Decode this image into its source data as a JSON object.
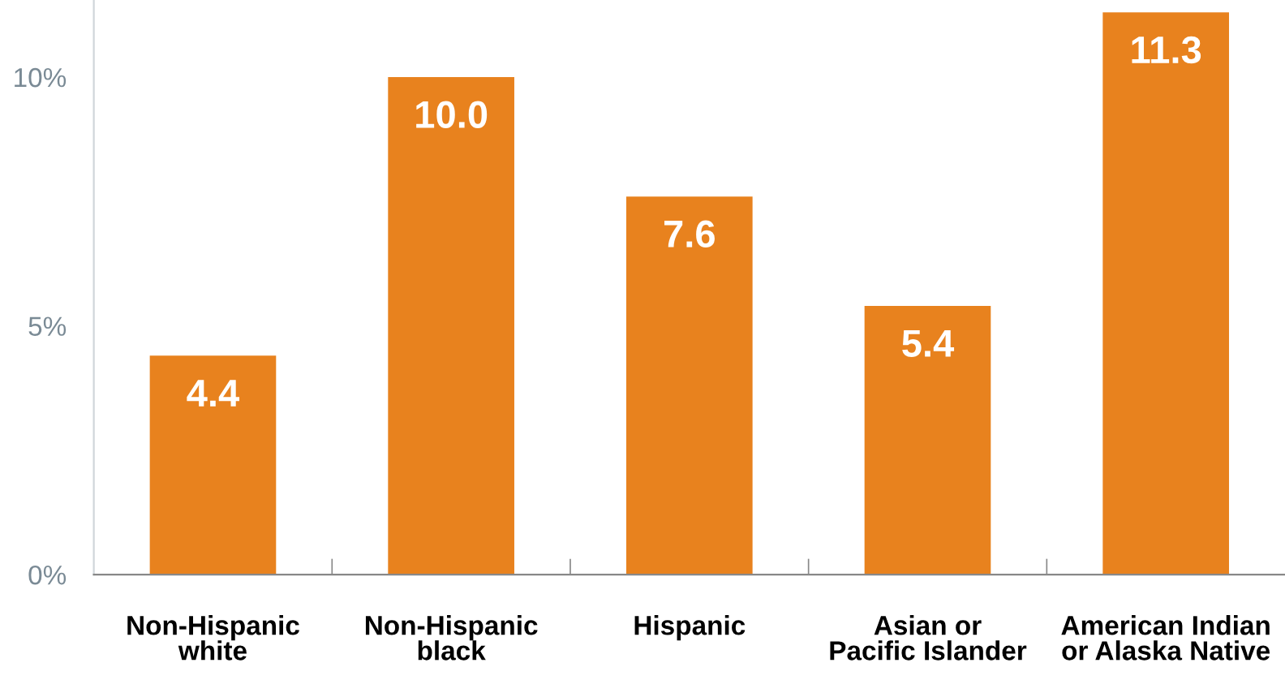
{
  "chart_data": {
    "type": "bar",
    "categories": [
      "Non-Hispanic\nwhite",
      "Non-Hispanic\nblack",
      "Hispanic",
      "Asian or\nPacific Islander",
      "American Indian\nor Alaska Native"
    ],
    "values": [
      4.4,
      10.0,
      7.6,
      5.4,
      11.3
    ],
    "value_labels": [
      "4.4",
      "10.0",
      "7.6",
      "5.4",
      "11.3"
    ],
    "color": "#e8821e",
    "ylim": [
      0,
      11.55
    ],
    "yticks": [
      {
        "value": 0,
        "label": "0%"
      },
      {
        "value": 5,
        "label": "5%"
      },
      {
        "value": 10,
        "label": "10%"
      }
    ],
    "grid": false,
    "legend": false
  }
}
